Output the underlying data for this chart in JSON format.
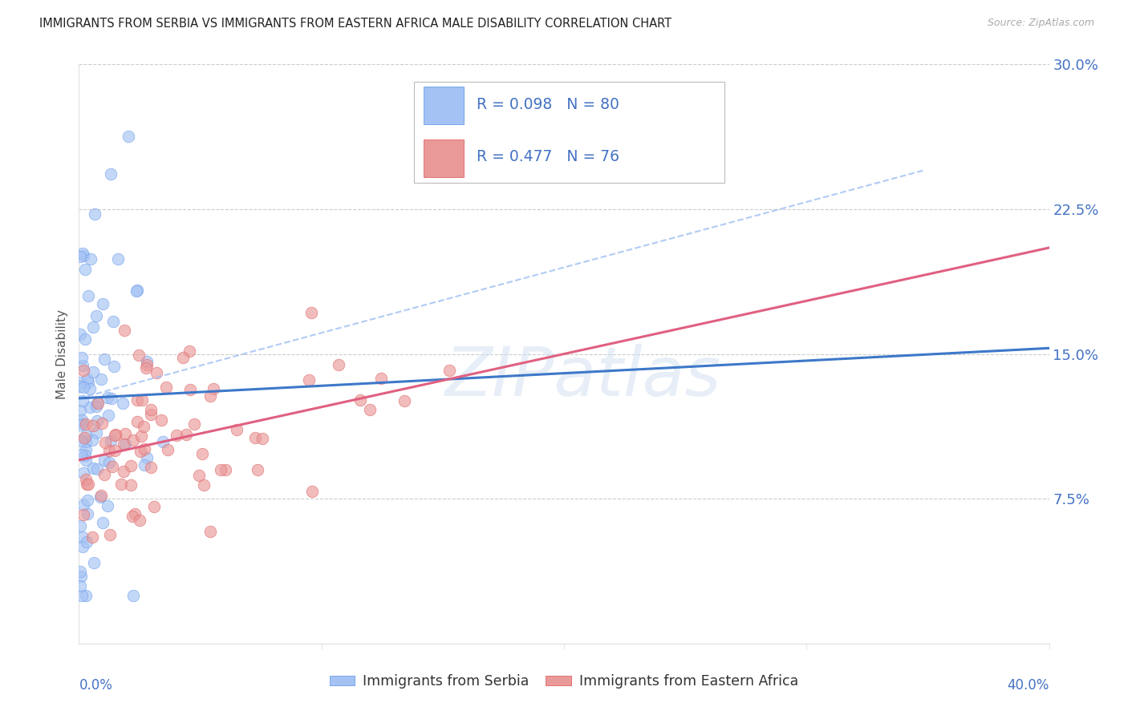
{
  "title": "IMMIGRANTS FROM SERBIA VS IMMIGRANTS FROM EASTERN AFRICA MALE DISABILITY CORRELATION CHART",
  "source": "Source: ZipAtlas.com",
  "ylabel": "Male Disability",
  "xmin": 0.0,
  "xmax": 0.4,
  "ymin": 0.0,
  "ymax": 0.3,
  "serbia_color": "#a4c2f4",
  "serbia_edge": "#6d9eeb",
  "eastern_africa_color": "#ea9999",
  "eastern_africa_edge": "#e06666",
  "serbia_R": 0.098,
  "serbia_N": 80,
  "eastern_africa_R": 0.477,
  "eastern_africa_N": 76,
  "legend_label_1": "Immigrants from Serbia",
  "legend_label_2": "Immigrants from Eastern Africa",
  "background_color": "#ffffff",
  "grid_color": "#cccccc",
  "title_color": "#222222",
  "axis_color": "#4472c4",
  "serbia_line_color": "#3d78c9",
  "eastern_africa_line_color": "#e06080",
  "dashed_line_color": "#a4c2f4",
  "watermark_text": "ZIPatlas",
  "watermark_color": "#d0dff0",
  "right_ytick_vals": [
    0.0,
    0.075,
    0.15,
    0.225,
    0.3
  ]
}
